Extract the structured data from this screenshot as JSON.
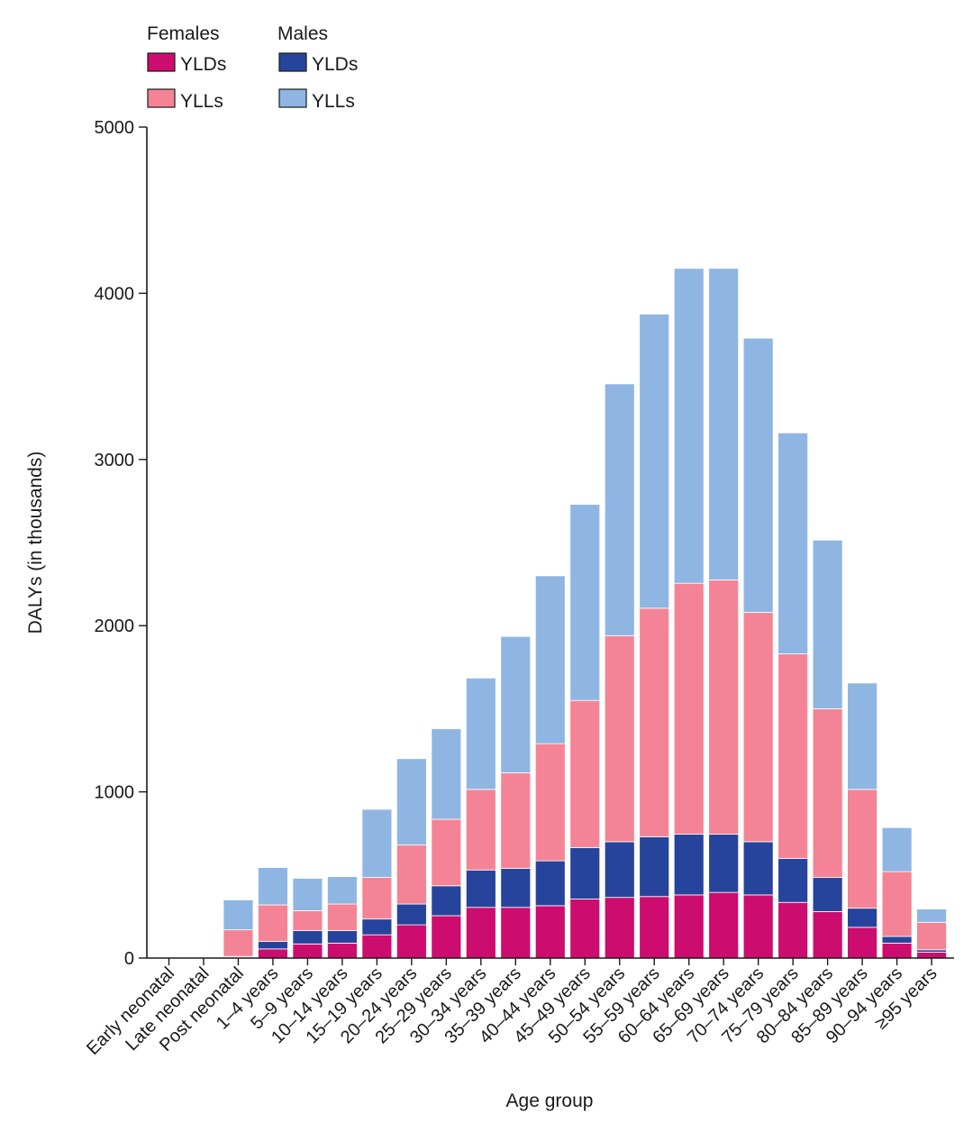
{
  "chart_data": {
    "type": "bar",
    "stacked": true,
    "xlabel": "Age group",
    "ylabel": "DALYs (in thousands)",
    "ylim": [
      0,
      5000
    ],
    "yticks": [
      0,
      1000,
      2000,
      3000,
      4000,
      5000
    ],
    "grid": false,
    "legend": {
      "placement": "top-left",
      "groups": [
        {
          "title": "Females",
          "entries": [
            "YLDs",
            "YLLs"
          ]
        },
        {
          "title": "Males",
          "entries": [
            "YLDs",
            "YLLs"
          ]
        }
      ]
    },
    "categories": [
      "Early neonatal",
      "Late neonatal",
      "Post neonatal",
      "1–4 years",
      "5–9 years",
      "10–14 years",
      "15–19 years",
      "20–24 years",
      "25–29 years",
      "30–34 years",
      "35–39 years",
      "40–44 years",
      "45–49 years",
      "50–54 years",
      "55–59 years",
      "60–64 years",
      "65–69 years",
      "70–74 years",
      "75–79 years",
      "80–84 years",
      "85–89 years",
      "90–94 years",
      "≥95 years"
    ],
    "series": [
      {
        "name": "Females YLDs",
        "color": "#cc0c6e",
        "values": [
          0,
          0,
          5,
          55,
          85,
          90,
          140,
          200,
          255,
          305,
          305,
          315,
          355,
          365,
          370,
          380,
          395,
          380,
          335,
          280,
          185,
          90,
          35
        ]
      },
      {
        "name": "Males YLDs",
        "color": "#27449c",
        "values": [
          0,
          0,
          5,
          45,
          80,
          75,
          95,
          125,
          180,
          225,
          235,
          270,
          310,
          335,
          360,
          365,
          350,
          320,
          265,
          205,
          115,
          40,
          15
        ]
      },
      {
        "name": "Females YLLs",
        "color": "#f48495",
        "values": [
          0,
          0,
          160,
          220,
          120,
          160,
          250,
          355,
          400,
          485,
          575,
          705,
          885,
          1240,
          1375,
          1510,
          1530,
          1380,
          1230,
          1015,
          715,
          390,
          165
        ]
      },
      {
        "name": "Males YLLs",
        "color": "#8fb6e3",
        "values": [
          0,
          0,
          180,
          225,
          195,
          165,
          410,
          520,
          545,
          670,
          820,
          1010,
          1180,
          1515,
          1770,
          1895,
          1875,
          1650,
          1330,
          1015,
          640,
          265,
          80
        ]
      }
    ]
  }
}
